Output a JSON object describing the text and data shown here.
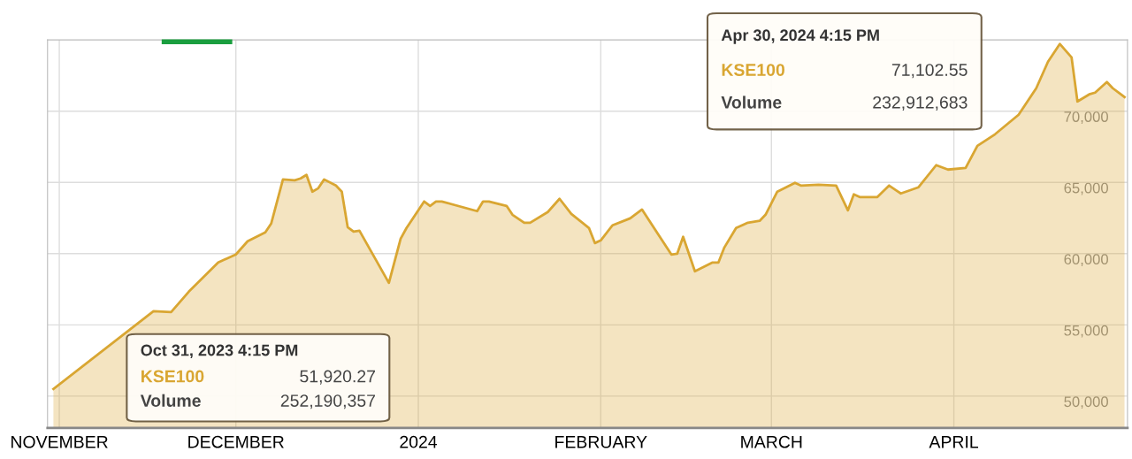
{
  "chart_data": {
    "type": "area",
    "x": [
      "2023-10-31",
      "2023-11-17",
      "2023-11-20",
      "2023-11-23",
      "2023-11-28",
      "2023-12-01",
      "2023-12-03",
      "2023-12-06",
      "2023-12-07",
      "2023-12-09",
      "2023-12-11",
      "2023-12-12",
      "2023-12-13",
      "2023-12-14",
      "2023-12-15",
      "2023-12-16",
      "2023-12-18",
      "2023-12-19",
      "2023-12-20",
      "2023-12-21",
      "2023-12-22",
      "2023-12-27",
      "2023-12-29",
      "2023-12-30",
      "2024-01-02",
      "2024-01-03",
      "2024-01-04",
      "2024-01-05",
      "2024-01-11",
      "2024-01-12",
      "2024-01-13",
      "2024-01-16",
      "2024-01-17",
      "2024-01-19",
      "2024-01-20",
      "2024-01-23",
      "2024-01-25",
      "2024-01-27",
      "2024-01-30",
      "2024-01-31",
      "2024-02-01",
      "2024-02-03",
      "2024-02-06",
      "2024-02-08",
      "2024-02-13",
      "2024-02-14",
      "2024-02-15",
      "2024-02-17",
      "2024-02-20",
      "2024-02-21",
      "2024-02-22",
      "2024-02-24",
      "2024-02-26",
      "2024-02-28",
      "2024-02-29",
      "2024-03-02",
      "2024-03-05",
      "2024-03-06",
      "2024-03-09",
      "2024-03-12",
      "2024-03-14",
      "2024-03-15",
      "2024-03-16",
      "2024-03-19",
      "2024-03-21",
      "2024-03-23",
      "2024-03-26",
      "2024-03-29",
      "2024-03-31",
      "2024-04-03",
      "2024-04-05",
      "2024-04-08",
      "2024-04-12",
      "2024-04-15",
      "2024-04-17",
      "2024-04-19",
      "2024-04-21",
      "2024-04-22",
      "2024-04-24",
      "2024-04-25",
      "2024-04-27",
      "2024-04-28",
      "2024-04-30"
    ],
    "series": [
      {
        "color": "#d9a632",
        "values": [
          50500,
          55960,
          55900,
          57330,
          59380,
          59940,
          60870,
          61490,
          62110,
          65210,
          65150,
          65280,
          65530,
          64350,
          64590,
          65210,
          64780,
          64350,
          61860,
          61550,
          61610,
          57950,
          61050,
          61800,
          63660,
          63350,
          63660,
          63660,
          62980,
          63660,
          63660,
          63350,
          62730,
          62170,
          62170,
          62920,
          63850,
          62790,
          61800,
          60740,
          60930,
          61990,
          62480,
          63100,
          59940,
          60000,
          61180,
          58760,
          59380,
          59380,
          60430,
          61800,
          62170,
          62300,
          62730,
          64350,
          64970,
          64780,
          64840,
          64780,
          63040,
          64160,
          63970,
          63970,
          64780,
          64220,
          64660,
          66210,
          65900,
          66020,
          67570,
          68380,
          69750,
          71610,
          73470,
          74720,
          73780,
          70680,
          71180,
          71300,
          72050,
          71610,
          70990
        ]
      }
    ],
    "xlim": [
      "2023-10-30",
      "2024-04-30T12:00"
    ],
    "xticks": [
      {
        "value": "2023-11-01",
        "label": "NOVEMBER"
      },
      {
        "value": "2023-12-01",
        "label": "DECEMBER"
      },
      {
        "value": "2024-01-01",
        "label": "2024"
      },
      {
        "value": "2024-02-01",
        "label": "FEBRUARY"
      },
      {
        "value": "2024-03-01",
        "label": "MARCH"
      },
      {
        "value": "2024-04-01",
        "label": "APRIL"
      }
    ],
    "ylim": [
      47760,
      75000
    ],
    "yticks": [
      {
        "value": 50000,
        "label": "50,000"
      },
      {
        "value": 55000,
        "label": "55,000"
      },
      {
        "value": 60000,
        "label": "60,000"
      },
      {
        "value": 65000,
        "label": "65,000"
      },
      {
        "value": 70000,
        "label": "70,000"
      }
    ],
    "grid": true,
    "annotations": [
      "Oct 31, 2023 4:15 PM",
      "KSE100",
      "51,920.27",
      "Volume",
      "252,190,357",
      "Apr 30, 2024 4:15 PM",
      "KSE100",
      "71,102.55",
      "Volume",
      "232,912,683"
    ]
  }
}
